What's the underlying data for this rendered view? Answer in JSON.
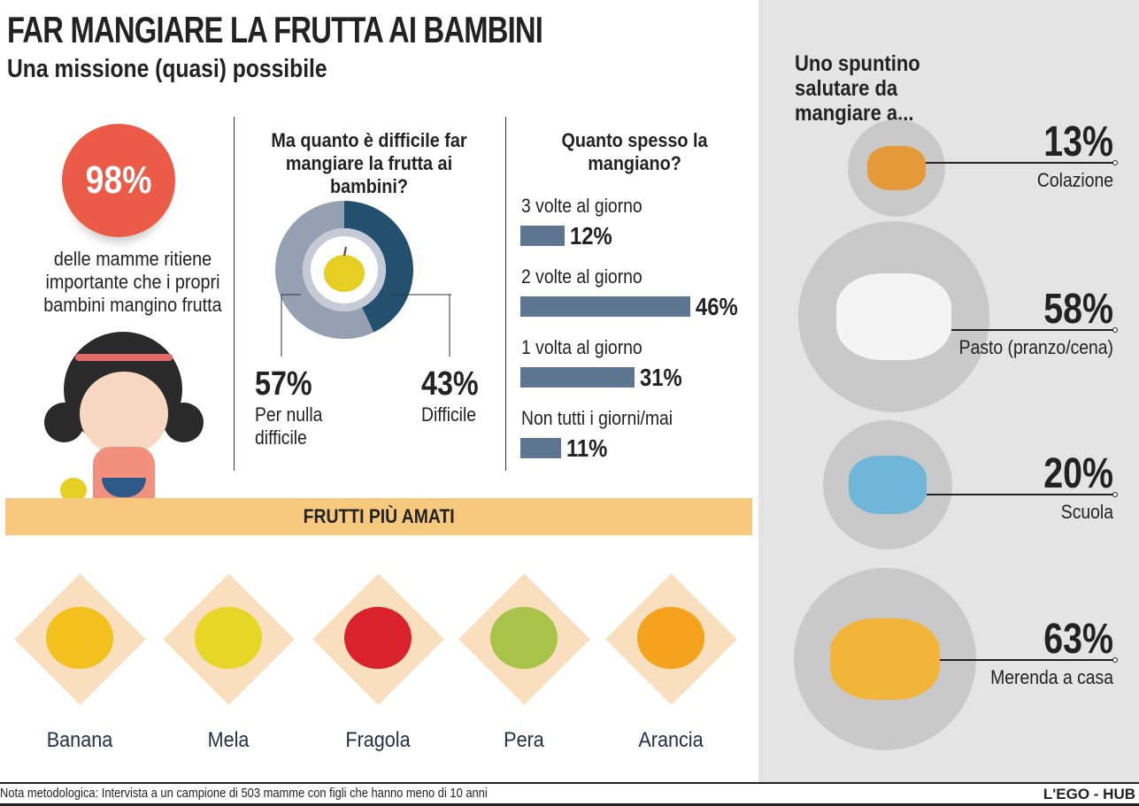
{
  "header": {
    "title": "FAR MANGIARE LA FRUTTA AI BAMBINI",
    "subtitle": "Una missione (quasi) possibile"
  },
  "stat_mamme": {
    "value": "98%",
    "text": "delle mamme ritiene importante che i propri bambini mangino frutta",
    "color": "#ec5b47"
  },
  "donut": {
    "title": "Ma quanto è difficile far mangiare la frutta ai bambini?",
    "slices": [
      {
        "label": "Per nulla difficile",
        "pct": "57%",
        "value": 57,
        "color": "#95a1b3"
      },
      {
        "label": "Difficile",
        "pct": "43%",
        "value": 43,
        "color": "#23506f"
      }
    ]
  },
  "frequency": {
    "title": "Quanto spesso la mangiano?",
    "bars": [
      {
        "label": "3 volte al giorno",
        "pct": "12%",
        "value": 12
      },
      {
        "label": "2 volte al giorno",
        "pct": "46%",
        "value": 46
      },
      {
        "label": "1 volta al giorno",
        "pct": "31%",
        "value": 31
      },
      {
        "label": "Non tutti i giorni/mai",
        "pct": "11%",
        "value": 11
      }
    ],
    "color": "#5e7591"
  },
  "fruits": {
    "title": "FRUTTI PIÙ AMATI",
    "items": [
      "Banana",
      "Mela",
      "Fragola",
      "Pera",
      "Arancia"
    ]
  },
  "snack": {
    "title": "Uno spuntino salutare da mangiare a...",
    "items": [
      {
        "pct": "13%",
        "label": "Colazione"
      },
      {
        "pct": "58%",
        "label": "Pasto (pranzo/cena)"
      },
      {
        "pct": "20%",
        "label": "Scuola"
      },
      {
        "pct": "63%",
        "label": "Merenda a casa"
      }
    ]
  },
  "footer": {
    "note": "Nota metodologica: Intervista a un campione di 503 mamme con figli che hanno meno di 10 anni",
    "brand": "L'EGO - HUB"
  },
  "chart_data": [
    {
      "type": "pie",
      "title": "Ma quanto è difficile far mangiare la frutta ai bambini?",
      "categories": [
        "Per nulla difficile",
        "Difficile"
      ],
      "values": [
        57,
        43
      ]
    },
    {
      "type": "bar",
      "title": "Quanto spesso la mangiano?",
      "categories": [
        "3 volte al giorno",
        "2 volte al giorno",
        "1 volta al giorno",
        "Non tutti i giorni/mai"
      ],
      "values": [
        12,
        46,
        31,
        11
      ]
    },
    {
      "type": "bar",
      "title": "Uno spuntino salutare da mangiare a...",
      "categories": [
        "Colazione",
        "Pasto (pranzo/cena)",
        "Scuola",
        "Merenda a casa"
      ],
      "values": [
        13,
        58,
        20,
        63
      ]
    }
  ]
}
